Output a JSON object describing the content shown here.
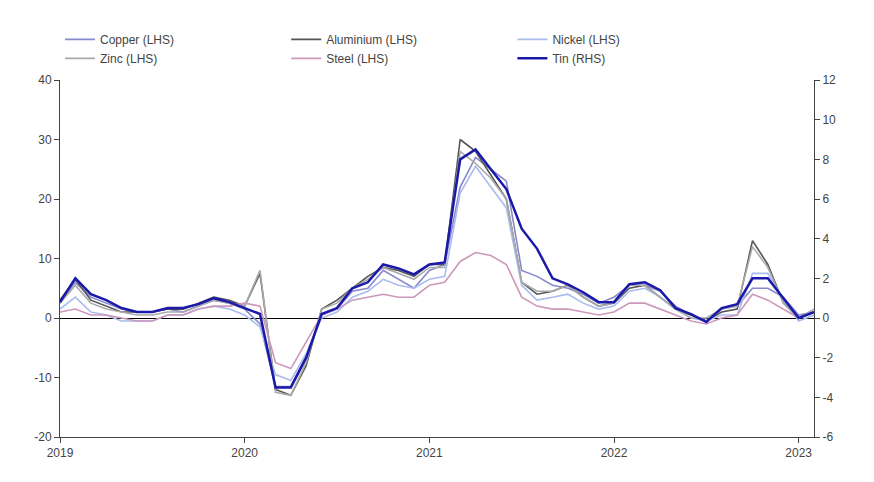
{
  "chart_data": {
    "type": "line",
    "x": [
      2019.0,
      2019.083,
      2019.167,
      2019.25,
      2019.333,
      2019.417,
      2019.5,
      2019.583,
      2019.667,
      2019.75,
      2019.833,
      2019.917,
      2020.0,
      2020.083,
      2020.167,
      2020.25,
      2020.333,
      2020.417,
      2020.5,
      2020.583,
      2020.667,
      2020.75,
      2020.833,
      2020.917,
      2021.0,
      2021.083,
      2021.167,
      2021.25,
      2021.333,
      2021.417,
      2021.5,
      2021.583,
      2021.667,
      2021.75,
      2021.833,
      2021.917,
      2022.0,
      2022.083,
      2022.167,
      2022.25,
      2022.333,
      2022.417,
      2022.5,
      2022.583,
      2022.667,
      2022.75,
      2022.833,
      2022.917,
      2023.0,
      2023.083
    ],
    "xlim": [
      2019.0,
      2023.083
    ],
    "xticks": [
      2019,
      2020,
      2021,
      2022,
      2023
    ],
    "ylim": [
      -20,
      40
    ],
    "yticks": [
      -20,
      -10,
      0,
      10,
      20,
      30,
      40
    ],
    "y2lim": [
      -6,
      12
    ],
    "y2ticks": [
      -6,
      -4,
      -2,
      0,
      2,
      4,
      6,
      8,
      10,
      12
    ],
    "grid": false,
    "legend": "upper left",
    "series": [
      {
        "name": "Copper (LHS)",
        "color": "#8888cc",
        "values": [
          2.5,
          6.0,
          3.5,
          2.5,
          1.5,
          1.0,
          1.0,
          1.5,
          1.0,
          2.0,
          3.0,
          2.5,
          1.5,
          -1.0,
          -11.5,
          -11.5,
          -6.5,
          0.5,
          1.5,
          4.5,
          5.0,
          8.0,
          6.5,
          5.0,
          8.0,
          9.0,
          22.0,
          27.0,
          25.0,
          23.0,
          8.0,
          7.0,
          5.5,
          5.0,
          4.0,
          2.5,
          3.5,
          5.5,
          5.5,
          4.5,
          2.0,
          0.5,
          -0.5,
          1.5,
          2.0,
          5.0,
          5.0,
          3.5,
          0.5,
          1.0
        ]
      },
      {
        "name": "Aluminium (LHS)",
        "color": "#555555",
        "values": [
          3.0,
          6.5,
          3.0,
          2.0,
          1.0,
          1.0,
          1.0,
          1.5,
          1.5,
          2.5,
          3.5,
          3.0,
          2.0,
          7.5,
          -12.0,
          -13.0,
          -8.0,
          1.5,
          3.0,
          5.0,
          7.0,
          8.5,
          8.0,
          7.0,
          9.0,
          9.0,
          30.0,
          28.0,
          24.0,
          20.0,
          6.0,
          4.0,
          4.5,
          5.5,
          3.5,
          2.0,
          2.5,
          5.0,
          5.5,
          3.5,
          1.5,
          0.5,
          -0.5,
          1.0,
          1.5,
          13.0,
          9.0,
          2.5,
          0.0,
          1.0
        ]
      },
      {
        "name": "Nickel (LHS)",
        "color": "#aabbee",
        "values": [
          1.5,
          3.5,
          1.0,
          0.5,
          -0.5,
          -0.5,
          -0.5,
          0.5,
          0.5,
          1.5,
          2.0,
          1.5,
          0.5,
          -1.5,
          -9.5,
          -10.5,
          -6.0,
          0.0,
          1.0,
          3.5,
          4.5,
          6.5,
          5.5,
          5.0,
          6.5,
          7.0,
          21.0,
          25.5,
          22.0,
          18.5,
          5.5,
          3.0,
          3.5,
          4.0,
          2.5,
          1.5,
          2.0,
          4.5,
          5.0,
          3.5,
          1.5,
          0.0,
          -0.5,
          0.5,
          0.5,
          7.5,
          7.5,
          3.0,
          -0.5,
          0.5
        ]
      },
      {
        "name": "Zinc (LHS)",
        "color": "#aaaaaa",
        "values": [
          2.5,
          5.5,
          2.5,
          1.5,
          1.0,
          0.5,
          0.5,
          1.0,
          1.0,
          2.0,
          3.0,
          2.5,
          2.0,
          8.0,
          -12.5,
          -13.0,
          -7.5,
          1.5,
          2.5,
          5.0,
          6.5,
          8.5,
          7.5,
          6.5,
          8.5,
          8.5,
          28.0,
          26.0,
          23.5,
          20.0,
          6.0,
          4.5,
          4.5,
          5.5,
          3.5,
          2.0,
          2.5,
          5.5,
          5.5,
          3.5,
          1.5,
          0.0,
          0.0,
          1.5,
          2.0,
          12.0,
          8.5,
          2.5,
          0.0,
          1.5
        ]
      },
      {
        "name": "Steel (LHS)",
        "color": "#cc99bb",
        "values": [
          1.0,
          1.5,
          0.5,
          0.5,
          0.0,
          -0.5,
          -0.5,
          0.5,
          0.5,
          1.5,
          2.0,
          2.0,
          2.5,
          2.0,
          -7.5,
          -8.5,
          -4.0,
          0.5,
          1.5,
          3.0,
          3.5,
          4.0,
          3.5,
          3.5,
          5.5,
          6.0,
          9.5,
          11.0,
          10.5,
          9.0,
          3.5,
          2.0,
          1.5,
          1.5,
          1.0,
          0.5,
          1.0,
          2.5,
          2.5,
          1.5,
          0.5,
          -0.5,
          -1.0,
          0.0,
          0.5,
          4.0,
          3.0,
          1.5,
          0.0,
          1.0
        ]
      },
      {
        "name": "Tin (RHS)",
        "color": "#1a1aaa",
        "axis": "y2",
        "values": [
          0.8,
          2.0,
          1.2,
          0.9,
          0.5,
          0.3,
          0.3,
          0.5,
          0.5,
          0.7,
          1.0,
          0.8,
          0.5,
          0.2,
          -3.5,
          -3.5,
          -2.0,
          0.2,
          0.5,
          1.5,
          1.8,
          2.7,
          2.5,
          2.2,
          2.7,
          2.8,
          8.0,
          8.5,
          7.5,
          6.5,
          4.5,
          3.5,
          2.0,
          1.7,
          1.3,
          0.8,
          0.8,
          1.7,
          1.8,
          1.4,
          0.5,
          0.2,
          -0.2,
          0.5,
          0.7,
          2.0,
          2.0,
          1.0,
          0.0,
          0.3
        ]
      }
    ]
  }
}
